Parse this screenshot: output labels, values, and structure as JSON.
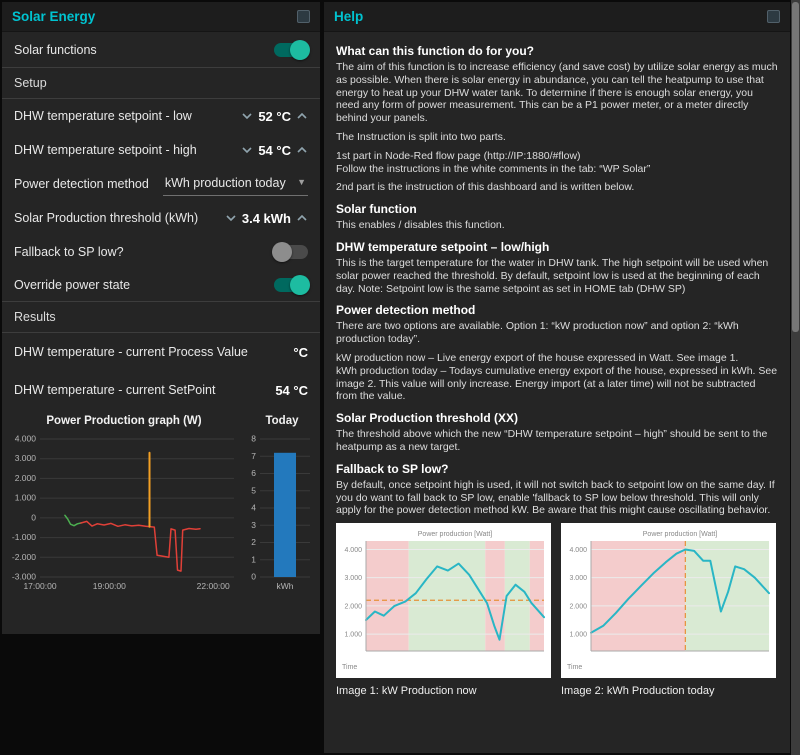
{
  "solar_panel": {
    "title": "Solar Energy",
    "solar_functions": {
      "label": "Solar functions",
      "state": "on"
    },
    "setup_label": "Setup",
    "sp_low": {
      "label": "DHW temperature setpoint - low",
      "value": "52 °C"
    },
    "sp_high": {
      "label": "DHW temperature setpoint - high",
      "value": "54 °C"
    },
    "power_method": {
      "label": "Power detection method",
      "value": "kWh production today"
    },
    "threshold": {
      "label": "Solar Production threshold (kWh)",
      "value": "3.4 kWh"
    },
    "fallback": {
      "label": "Fallback to SP low?",
      "state": "off"
    },
    "override": {
      "label": "Override power state",
      "state": "on"
    },
    "results_label": "Results",
    "process_value": {
      "label": "DHW temperature - current Process Value",
      "value": "°C"
    },
    "setpoint": {
      "label": "DHW temperature - current SetPoint",
      "value": "54 °C"
    }
  },
  "help": {
    "title": "Help",
    "sections": [
      {
        "heading": "What can this function do for you?",
        "paras": [
          "The aim of this function is to increase efficiency (and save cost) by utilize solar energy as much as possible. When there is solar energy in abundance, you can tell the heatpump to use that energy to heat up your DHW water tank. To determine if there is enough solar energy, you need any form of power measurement. This can be a P1 power meter, or a meter directly behind your panels.",
          "The Instruction is split into two parts.",
          "1st part in Node-Red flow page (http://IP:1880/#flow)\nFollow the instructions in the white comments in the tab: “WP Solar”",
          "2nd part is the instruction of this dashboard and is written below."
        ]
      },
      {
        "heading": "Solar function",
        "paras": [
          "This enables / disables this function."
        ]
      },
      {
        "heading": "DHW temperature setpoint – low/high",
        "paras": [
          "This is the target temperature for the water in DHW tank. The high setpoint will be used when solar power reached the threshold. By default, setpoint low is used at the beginning of each day. Note: Setpoint low is the same setpoint as set in HOME tab (DHW SP)"
        ]
      },
      {
        "heading": "Power detection method",
        "paras": [
          "There are two options are available. Option 1: “kW production now” and option 2: “kWh production today”.",
          "kW production now – Live energy export of the house expressed in Watt. See image 1.\nkWh production today – Todays cumulative energy export of the house, expressed in kWh. See image 2. This value will only increase. Energy import (at a later time) will not be subtracted from the value."
        ]
      },
      {
        "heading": "Solar Production threshold (XX)",
        "paras": [
          "The threshold above which the new “DHW temperature setpoint – high” should be sent to the heatpump as a new target."
        ]
      },
      {
        "heading": "Fallback to SP low?",
        "paras": [
          "By default, once setpoint high is used, it will not switch back to setpoint low on the same day. If you do want to fall back to SP low, enable 'fallback to SP low below threshold. This will only apply for the power detection method kW. Be aware that this might cause oscillating behavior."
        ]
      }
    ],
    "captions": [
      "Image 1: kW Production now",
      "Image 2: kWh Production today"
    ]
  },
  "chart_data": [
    {
      "id": "power_production_graph",
      "type": "line",
      "title": "Power Production graph (W)",
      "xlabel": "",
      "ylabel": "W",
      "xlim": [
        17.0,
        22.6
      ],
      "ylim": [
        -3000,
        4000
      ],
      "yticks": [
        {
          "v": 4000,
          "label": "4.000"
        },
        {
          "v": 3000,
          "label": "3.000"
        },
        {
          "v": 2000,
          "label": "2.000"
        },
        {
          "v": 1000,
          "label": "1.000"
        },
        {
          "v": 0,
          "label": "0"
        },
        {
          "v": -1000,
          "label": "-1.000"
        },
        {
          "v": -2000,
          "label": "-2.000"
        },
        {
          "v": -3000,
          "label": "-3.000"
        }
      ],
      "xticks": [
        {
          "v": 17.0,
          "label": "17:00:00"
        },
        {
          "v": 19.0,
          "label": "19:00:00"
        },
        {
          "v": 22.0,
          "label": "22:00:00"
        }
      ],
      "series": [
        {
          "name": "production-green",
          "color": "#4caf50",
          "width": 1.5,
          "points": [
            [
              17.72,
              130
            ],
            [
              17.8,
              -60
            ],
            [
              17.88,
              -320
            ],
            [
              17.98,
              -400
            ],
            [
              18.08,
              -300
            ],
            [
              18.18,
              -260
            ]
          ]
        },
        {
          "name": "consumption-red",
          "color": "#e04038",
          "width": 1.5,
          "points": [
            [
              18.18,
              -260
            ],
            [
              18.35,
              -180
            ],
            [
              18.5,
              -420
            ],
            [
              18.65,
              -300
            ],
            [
              18.85,
              -360
            ],
            [
              19.05,
              -280
            ],
            [
              19.25,
              -430
            ],
            [
              19.45,
              -350
            ],
            [
              19.65,
              -410
            ],
            [
              19.85,
              -380
            ],
            [
              20.05,
              -430
            ],
            [
              20.3,
              -470
            ],
            [
              20.38,
              -1900
            ],
            [
              20.55,
              -1950
            ],
            [
              20.72,
              -2000
            ],
            [
              20.78,
              -560
            ],
            [
              20.9,
              -620
            ],
            [
              20.97,
              -2650
            ],
            [
              21.07,
              -2700
            ],
            [
              21.12,
              -620
            ],
            [
              21.3,
              -540
            ],
            [
              21.5,
              -580
            ],
            [
              21.62,
              -550
            ]
          ]
        },
        {
          "name": "spike-orange",
          "color": "#f2a024",
          "width": 2,
          "points": [
            [
              20.16,
              -450
            ],
            [
              20.16,
              3300
            ]
          ]
        }
      ]
    },
    {
      "id": "today_production",
      "type": "bar",
      "title": "Today",
      "categories": [
        "kWh"
      ],
      "values": [
        7.2
      ],
      "ylim": [
        0,
        8
      ],
      "yticks": [
        {
          "v": 8,
          "label": "8"
        },
        {
          "v": 7,
          "label": "7"
        },
        {
          "v": 6,
          "label": "6"
        },
        {
          "v": 5,
          "label": "5"
        },
        {
          "v": 4,
          "label": "4"
        },
        {
          "v": 3,
          "label": "3"
        },
        {
          "v": 2,
          "label": "2"
        },
        {
          "v": 1,
          "label": "1"
        },
        {
          "v": 0,
          "label": "0"
        }
      ],
      "bar_color": "#2379bd"
    },
    {
      "id": "image1_kw_production_now",
      "type": "line",
      "title": "Power production [Watt]",
      "xlabel": "Time",
      "xlim": [
        0,
        1
      ],
      "ylim": [
        400,
        4300
      ],
      "yticks": [
        {
          "v": 1000,
          "label": "1.000"
        },
        {
          "v": 2000,
          "label": "2.000"
        },
        {
          "v": 3000,
          "label": "3.000"
        },
        {
          "v": 4000,
          "label": "4.000"
        }
      ],
      "regions": [
        {
          "x0": 0,
          "x1": 0.24,
          "color": "#f4cccc"
        },
        {
          "x0": 0.24,
          "x1": 0.67,
          "color": "#d9ead3"
        },
        {
          "x0": 0.67,
          "x1": 0.78,
          "color": "#f4cccc"
        },
        {
          "x0": 0.78,
          "x1": 0.92,
          "color": "#d9ead3"
        },
        {
          "x0": 0.92,
          "x1": 1,
          "color": "#f4cccc"
        }
      ],
      "hlines": [
        {
          "y": 2200,
          "color": "#e69138",
          "dash": true
        }
      ],
      "series": [
        {
          "name": "kw-now",
          "color": "#29b6c5",
          "width": 2,
          "points": [
            [
              0.0,
              1500
            ],
            [
              0.05,
              1800
            ],
            [
              0.1,
              1650
            ],
            [
              0.16,
              2000
            ],
            [
              0.22,
              2150
            ],
            [
              0.28,
              2450
            ],
            [
              0.34,
              2950
            ],
            [
              0.4,
              3400
            ],
            [
              0.46,
              3250
            ],
            [
              0.52,
              3500
            ],
            [
              0.58,
              3100
            ],
            [
              0.64,
              2500
            ],
            [
              0.68,
              2100
            ],
            [
              0.72,
              1300
            ],
            [
              0.75,
              800
            ],
            [
              0.79,
              2350
            ],
            [
              0.84,
              2750
            ],
            [
              0.89,
              2500
            ],
            [
              0.93,
              2100
            ],
            [
              1.0,
              1600
            ]
          ]
        }
      ]
    },
    {
      "id": "image2_kwh_production_today",
      "type": "line",
      "title": "Power production [Watt]",
      "xlabel": "Time",
      "xlim": [
        0,
        1
      ],
      "ylim": [
        400,
        4300
      ],
      "yticks": [
        {
          "v": 1000,
          "label": "1.000"
        },
        {
          "v": 2000,
          "label": "2.000"
        },
        {
          "v": 3000,
          "label": "3.000"
        },
        {
          "v": 4000,
          "label": "4.000"
        }
      ],
      "regions": [
        {
          "x0": 0,
          "x1": 0.53,
          "color": "#f4cccc"
        },
        {
          "x0": 0.53,
          "x1": 1,
          "color": "#d9ead3"
        }
      ],
      "vlines": [
        {
          "x": 0.53,
          "color": "#e69138",
          "dash": true
        }
      ],
      "series": [
        {
          "name": "kwh-today",
          "color": "#29b6c5",
          "width": 2,
          "points": [
            [
              0.0,
              1050
            ],
            [
              0.07,
              1300
            ],
            [
              0.14,
              1750
            ],
            [
              0.21,
              2250
            ],
            [
              0.28,
              2700
            ],
            [
              0.35,
              3150
            ],
            [
              0.42,
              3550
            ],
            [
              0.48,
              3850
            ],
            [
              0.53,
              4000
            ],
            [
              0.58,
              3950
            ],
            [
              0.63,
              3600
            ],
            [
              0.67,
              3600
            ],
            [
              0.7,
              2700
            ],
            [
              0.73,
              1800
            ],
            [
              0.77,
              2500
            ],
            [
              0.81,
              3400
            ],
            [
              0.86,
              3300
            ],
            [
              0.92,
              3000
            ],
            [
              1.0,
              2450
            ]
          ]
        }
      ]
    }
  ]
}
